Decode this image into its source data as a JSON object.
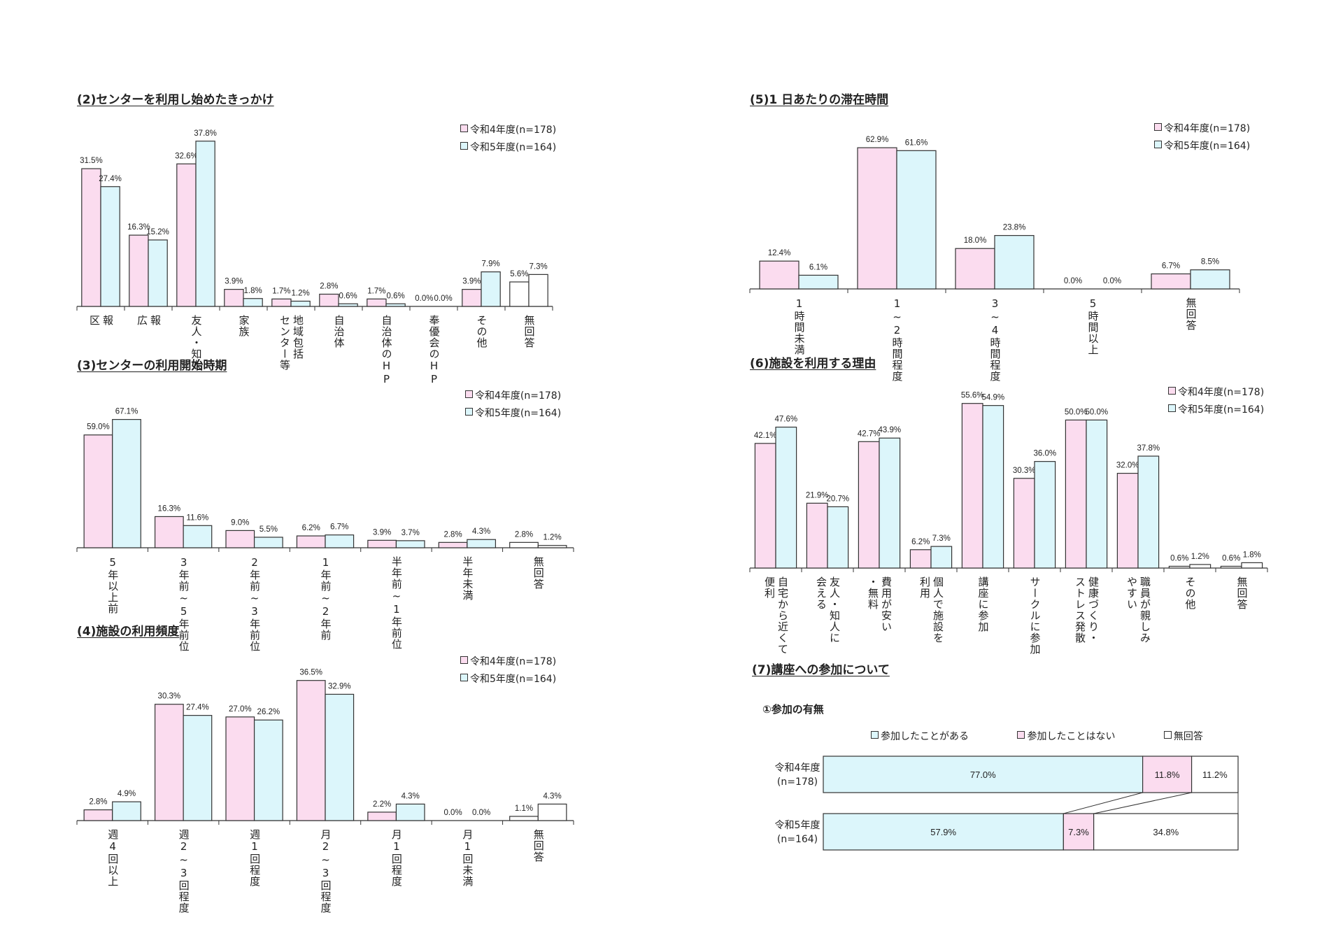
{
  "colors": {
    "r4": "#fbdcef",
    "r5": "#dcf6fb",
    "none": "#ffffff",
    "stroke": "#333333"
  },
  "legend": {
    "r4": "令和4年度(n=178)",
    "r5": "令和5年度(n=164)"
  },
  "chart_data": [
    {
      "id": "c2",
      "type": "bar",
      "title": "(2)センターを利用し始めたきっかけ",
      "categories": [
        "区\n報",
        "広\n報",
        "友人・知人",
        "家族",
        "センター等\n地域包括",
        "自治体",
        "自治体のHP",
        "奉優会のHP",
        "その他",
        "無回答"
      ],
      "series": [
        {
          "name": "令和4年度(n=178)",
          "values": [
            31.5,
            16.3,
            32.6,
            3.9,
            1.7,
            2.8,
            1.7,
            0.0,
            3.9,
            5.6
          ]
        },
        {
          "name": "令和5年度(n=164)",
          "values": [
            27.4,
            15.2,
            37.8,
            1.8,
            1.2,
            0.6,
            0.6,
            0.0,
            7.9,
            7.3
          ]
        }
      ],
      "unfilled_categories": [
        "無回答"
      ],
      "ylim": [
        0,
        40
      ],
      "grid": false,
      "legend_position": "top-right"
    },
    {
      "id": "c3",
      "type": "bar",
      "title": "(3)センターの利用開始時期",
      "categories": [
        "5年以上前",
        "3年前~5年前位",
        "2年前~3年前位",
        "1年前~2年前",
        "半年前~1年前位",
        "半年未満",
        "無回答"
      ],
      "series": [
        {
          "name": "令和4年度(n=178)",
          "values": [
            59.0,
            16.3,
            9.0,
            6.2,
            3.9,
            2.8,
            2.8
          ]
        },
        {
          "name": "令和5年度(n=164)",
          "values": [
            67.1,
            11.6,
            5.5,
            6.7,
            3.7,
            4.3,
            1.2
          ]
        }
      ],
      "unfilled_categories": [
        "無回答"
      ],
      "ylim": [
        0,
        70
      ],
      "grid": false,
      "legend_position": "top-right"
    },
    {
      "id": "c4",
      "type": "bar",
      "title": "(4)施設の利用頻度",
      "categories": [
        "週4回以上",
        "週2~3回程度",
        "週1回程度",
        "月2~3回程度",
        "月1回程度",
        "月1回未満",
        "無回答"
      ],
      "series": [
        {
          "name": "令和4年度(n=178)",
          "values": [
            2.8,
            30.3,
            27.0,
            36.5,
            2.2,
            0.0,
            1.1
          ]
        },
        {
          "name": "令和5年度(n=164)",
          "values": [
            4.9,
            27.4,
            26.2,
            32.9,
            4.3,
            0.0,
            4.3
          ]
        }
      ],
      "unfilled_categories": [
        "無回答"
      ],
      "ylim": [
        0,
        40
      ],
      "grid": false,
      "legend_position": "top-right"
    },
    {
      "id": "c5",
      "type": "bar",
      "title": "(5)1 日あたりの滞在時間",
      "categories": [
        "1時間未満",
        "1~2時間程度",
        "3~4時間程度",
        "5時間以上",
        "無回答"
      ],
      "series": [
        {
          "name": "令和4年度(n=178)",
          "values": [
            12.4,
            62.9,
            18.0,
            0.0,
            6.7
          ]
        },
        {
          "name": "令和5年度(n=164)",
          "values": [
            6.1,
            61.6,
            23.8,
            0.0,
            8.5
          ]
        }
      ],
      "unfilled_categories": [],
      "ylim": [
        0,
        70
      ],
      "grid": false,
      "legend_position": "top-right"
    },
    {
      "id": "c6",
      "type": "bar",
      "title": "(6)施設を利用する理由",
      "categories": [
        "便利\n自宅から近くて",
        "会える\n友人・知人に",
        "・無料\n費用が安い",
        "利用\n個人で施設を",
        "講座に参加",
        "サークルに参加",
        "ストレス発散\n健康づくり・",
        "やすい\n職員が親しみ",
        "その他",
        "無回答"
      ],
      "series": [
        {
          "name": "令和4年度(n=178)",
          "values": [
            42.1,
            21.9,
            42.7,
            6.2,
            55.6,
            30.3,
            50.0,
            32.0,
            0.6,
            0.6
          ]
        },
        {
          "name": "令和5年度(n=164)",
          "values": [
            47.6,
            20.7,
            43.9,
            7.3,
            54.9,
            36.0,
            50.0,
            37.8,
            1.2,
            1.8
          ]
        }
      ],
      "unfilled_categories": [
        "その他",
        "無回答"
      ],
      "ylim": [
        0,
        60
      ],
      "grid": false,
      "legend_position": "top-right"
    },
    {
      "id": "c7",
      "type": "bar",
      "orientation": "horizontal-stacked",
      "title": "(7)講座への参加について",
      "subtitle": "①参加の有無",
      "legend": [
        "参加したことがある",
        "参加したことはない",
        "無回答"
      ],
      "rows": [
        {
          "label": "令和4年度",
          "n": "(n=178)",
          "values": [
            77.0,
            11.8,
            11.2
          ]
        },
        {
          "label": "令和5年度",
          "n": "(n=164)",
          "values": [
            57.9,
            7.3,
            34.8
          ]
        }
      ],
      "xlim": [
        0,
        100
      ],
      "grid": false,
      "legend_position": "top"
    }
  ]
}
